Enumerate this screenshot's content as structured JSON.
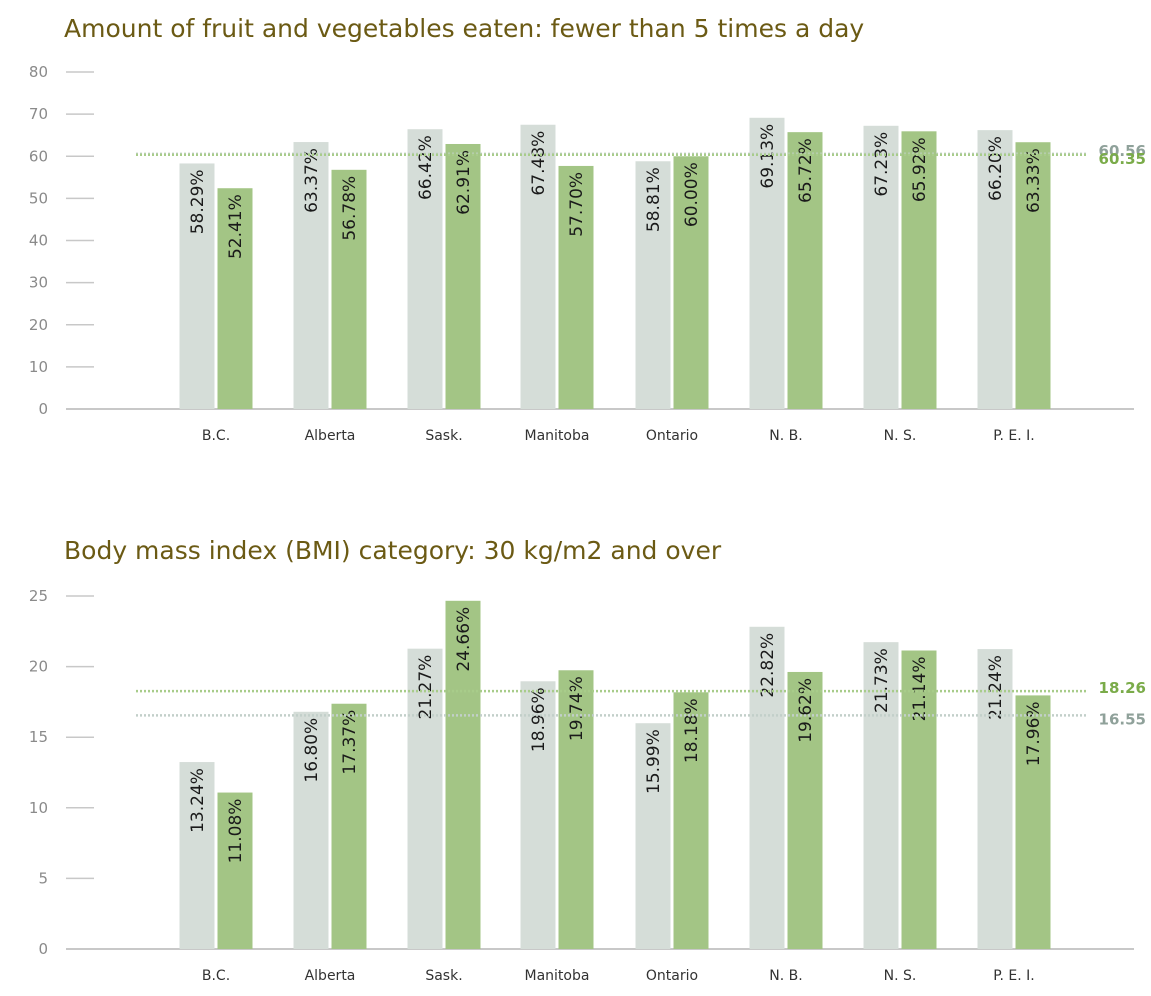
{
  "colors": {
    "series_light": "#d5ddd8",
    "series_green": "#a3c585",
    "ref_light_line": "#c2cfc9",
    "ref_green_line": "#a8cc8a",
    "ref_light_text": "#8fa19a",
    "ref_green_text": "#7aab49",
    "axis": "#c8c8c8",
    "title": "#6b5a14"
  },
  "chart_data": [
    {
      "type": "bar",
      "title": "Amount of fruit and vegetables eaten: fewer than 5 times a day",
      "categories": [
        "B.C.",
        "Alberta",
        "Sask.",
        "Manitoba",
        "Ontario",
        "N. B.",
        "N. S.",
        "P. E. I."
      ],
      "series": [
        {
          "values": [
            58.29,
            63.37,
            66.42,
            67.48,
            58.81,
            69.13,
            67.23,
            66.2
          ],
          "labels": [
            "58.29%",
            "63.37%",
            "66.42%",
            "67.48%",
            "58.81%",
            "69.13%",
            "67.23%",
            "66.20%"
          ],
          "color": "#d5ddd8"
        },
        {
          "values": [
            52.41,
            56.78,
            62.91,
            57.7,
            60.0,
            65.72,
            65.92,
            63.33
          ],
          "labels": [
            "52.41%",
            "56.78%",
            "62.91%",
            "57.70%",
            "60.00%",
            "65.72%",
            "65.92%",
            "63.33%"
          ],
          "color": "#a3c585"
        }
      ],
      "reference_lines": [
        {
          "value": 60.56,
          "label": "60.56",
          "series": 0
        },
        {
          "value": 60.35,
          "label": "60.35",
          "series": 1
        }
      ],
      "yticks": [
        "0",
        "10",
        "20",
        "30",
        "40",
        "50",
        "60",
        "70",
        "80"
      ],
      "ylim": [
        0,
        80
      ],
      "xlabel": "",
      "ylabel": "",
      "grid": false
    },
    {
      "type": "bar",
      "title": "Body mass index (BMI) category: 30 kg/m2 and over",
      "categories": [
        "B.C.",
        "Alberta",
        "Sask.",
        "Manitoba",
        "Ontario",
        "N. B.",
        "N. S.",
        "P. E. I."
      ],
      "series": [
        {
          "values": [
            13.24,
            16.8,
            21.27,
            18.96,
            15.99,
            22.82,
            21.73,
            21.24
          ],
          "labels": [
            "13.24%",
            "16.80%",
            "21.27%",
            "18.96%",
            "15.99%",
            "22.82%",
            "21.73%",
            "21.24%"
          ],
          "color": "#d5ddd8"
        },
        {
          "values": [
            11.08,
            17.37,
            24.66,
            19.74,
            18.18,
            19.62,
            21.14,
            17.96
          ],
          "labels": [
            "11.08%",
            "17.37%",
            "24.66%",
            "19.74%",
            "18.18%",
            "19.62%",
            "21.14%",
            "17.96%"
          ],
          "color": "#a3c585"
        }
      ],
      "reference_lines": [
        {
          "value": 18.26,
          "label": "18.26",
          "series": 1
        },
        {
          "value": 16.55,
          "label": "16.55",
          "series": 0
        }
      ],
      "yticks": [
        "0",
        "5",
        "10",
        "15",
        "20",
        "25"
      ],
      "ylim": [
        0,
        25
      ],
      "xlabel": "",
      "ylabel": "",
      "grid": false
    }
  ]
}
